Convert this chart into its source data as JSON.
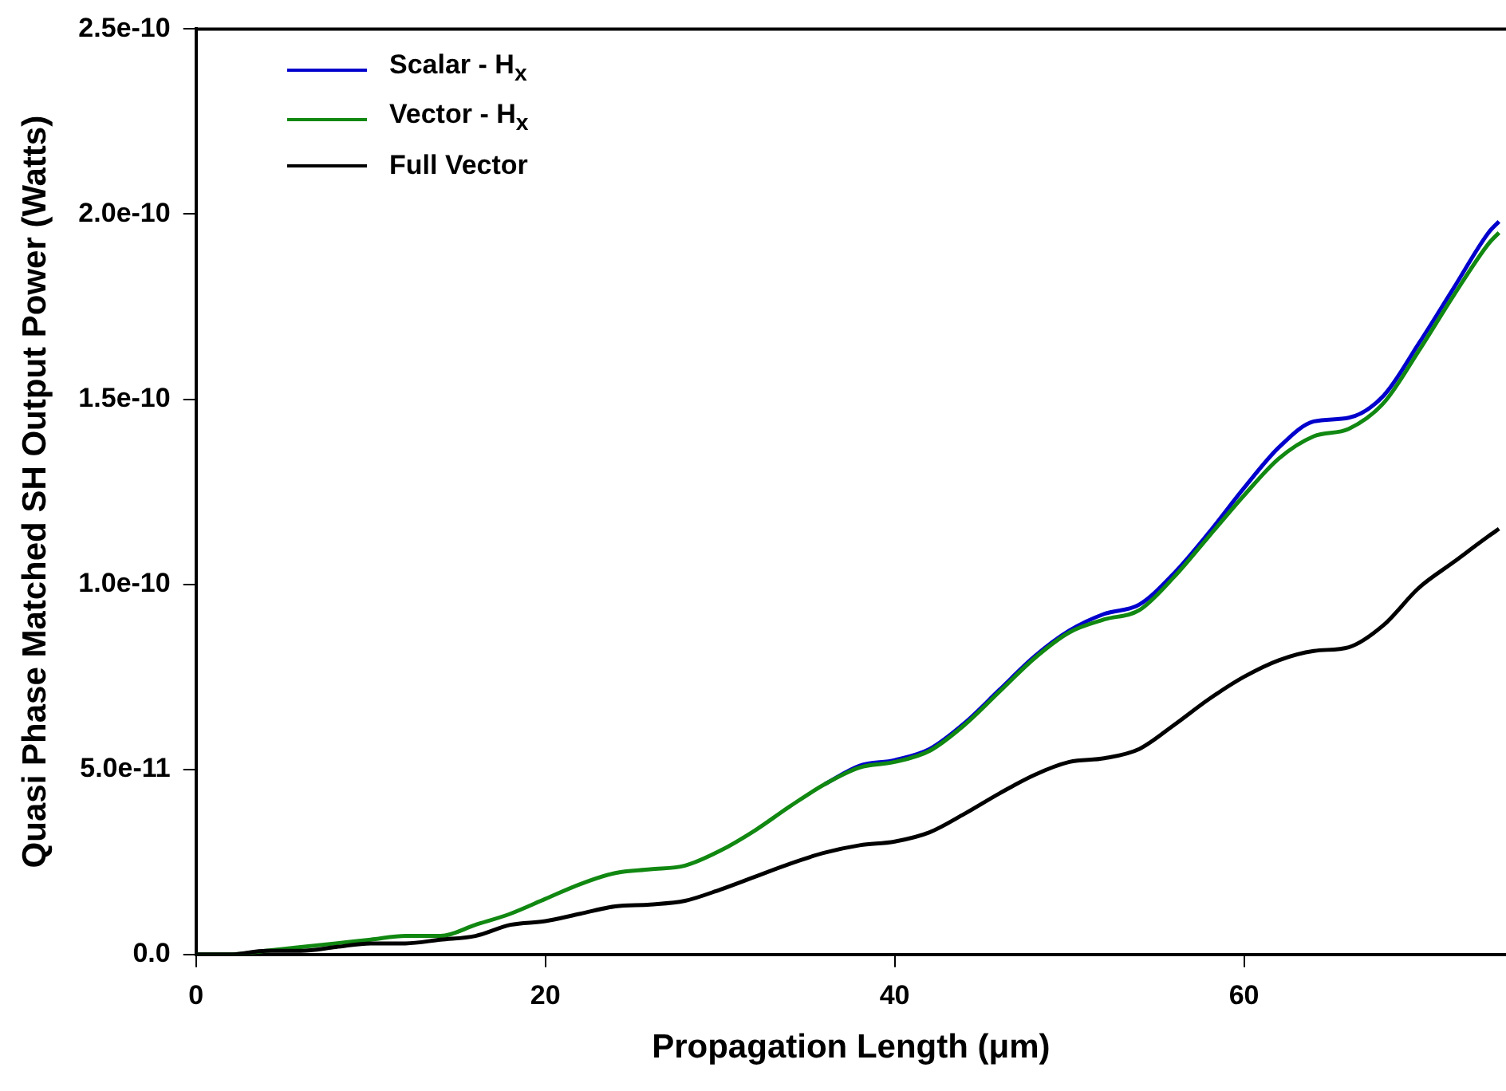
{
  "chart_data": {
    "type": "line",
    "xlabel": "Propagation Length (μm)",
    "ylabel": "Quasi Phase Matched SH Output Power (Watts)",
    "x": [
      0,
      2,
      4,
      6,
      8,
      10,
      12,
      14,
      16,
      18,
      20,
      22,
      24,
      26,
      28,
      30,
      32,
      34,
      36,
      38,
      40,
      42,
      44,
      46,
      48,
      50,
      52,
      54,
      56,
      58,
      60,
      62,
      64,
      66,
      68,
      70,
      72,
      74,
      74.6
    ],
    "series": [
      {
        "name": "Scalar - H$_{x}$",
        "color": "#0000cc",
        "values": [
          null,
          null,
          null,
          null,
          null,
          null,
          null,
          null,
          null,
          null,
          null,
          null,
          null,
          null,
          null,
          null,
          null,
          null,
          4.6e-11,
          5.1e-11,
          5.25e-11,
          5.55e-11,
          6.25e-11,
          7.15e-11,
          8.05e-11,
          8.75e-11,
          9.2e-11,
          9.45e-11,
          1.03e-10,
          1.14e-10,
          1.26e-10,
          1.37e-10,
          1.44e-10,
          1.45e-10,
          1.51e-10,
          1.65e-10,
          1.8e-10,
          1.95e-10,
          1.98e-10
        ]
      },
      {
        "name": "Vector - H$_{x}$",
        "color": "#118811",
        "values": [
          0,
          0,
          1e-12,
          2e-12,
          3e-12,
          4e-12,
          5e-12,
          5e-12,
          8e-12,
          1.1e-11,
          1.5e-11,
          1.9e-11,
          2.2e-11,
          2.3e-11,
          2.4e-11,
          2.8e-11,
          3.35e-11,
          4e-11,
          4.6e-11,
          5.05e-11,
          5.2e-11,
          5.5e-11,
          6.2e-11,
          7.1e-11,
          8e-11,
          8.7e-11,
          9.05e-11,
          9.3e-11,
          1.02e-10,
          1.13e-10,
          1.24e-10,
          1.34e-10,
          1.4e-10,
          1.42e-10,
          1.49e-10,
          1.63e-10,
          1.78e-10,
          1.92e-10,
          1.95e-10
        ]
      },
      {
        "name": "Full Vector",
        "color": "#000000",
        "values": [
          0,
          0,
          1e-12,
          1e-12,
          2e-12,
          3e-12,
          3e-12,
          4e-12,
          5e-12,
          8e-12,
          9e-12,
          1.1e-11,
          1.3e-11,
          1.35e-11,
          1.45e-11,
          1.75e-11,
          2.1e-11,
          2.45e-11,
          2.75e-11,
          2.95e-11,
          3.05e-11,
          3.3e-11,
          3.8e-11,
          4.35e-11,
          4.85e-11,
          5.2e-11,
          5.3e-11,
          5.55e-11,
          6.2e-11,
          6.9e-11,
          7.5e-11,
          7.95e-11,
          8.2e-11,
          8.3e-11,
          8.9e-11,
          9.9e-11,
          1.06e-10,
          1.13e-10,
          1.15e-10
        ]
      }
    ],
    "xlim": [
      0,
      75
    ],
    "xticks": [
      0,
      20,
      40,
      60
    ],
    "ylim": [
      0,
      2.5e-10
    ],
    "yticks": [
      {
        "value": 0,
        "label": "0.0"
      },
      {
        "value": 5e-11,
        "label": "5.0e-11"
      },
      {
        "value": 1e-10,
        "label": "1.0e-10"
      },
      {
        "value": 1.5e-10,
        "label": "1.5e-10"
      },
      {
        "value": 2e-10,
        "label": "2.0e-10"
      },
      {
        "value": 2.5e-10,
        "label": "2.5e-10"
      }
    ],
    "grid": false,
    "legend": "top left",
    "marker": "none",
    "line_style": "solid"
  }
}
